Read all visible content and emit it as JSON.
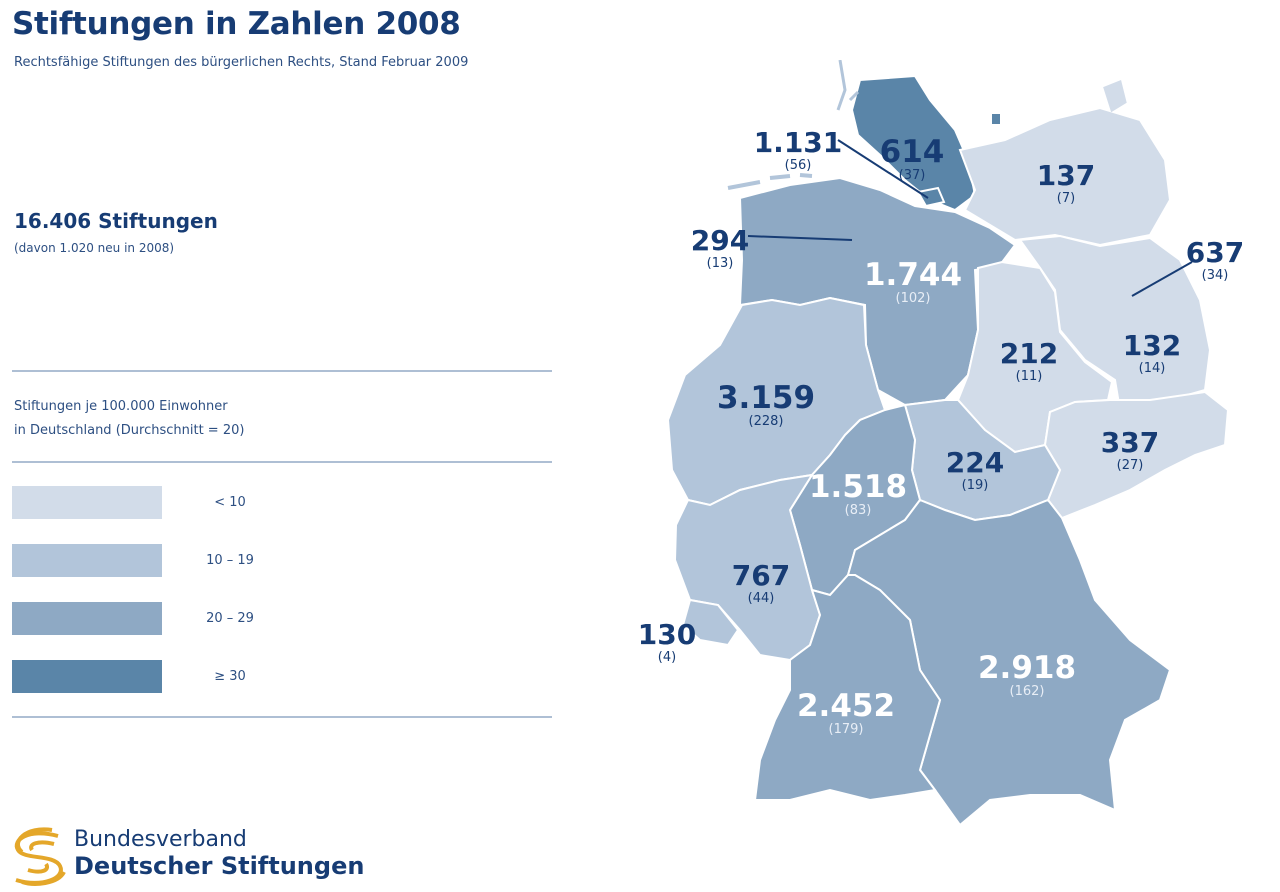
{
  "header": {
    "title": "Stiftungen in Zahlen 2008",
    "subtitle": "Rechtsfähige Stiftungen des bürgerlichen Rechts, Stand Februar 2009"
  },
  "summary": {
    "total": "16.406 Stiftungen",
    "new_note": "(davon 1.020 neu in 2008)"
  },
  "legend": {
    "title_line1": "Stiftungen je 100.000 Einwohner",
    "title_line2": "in Deutschland (Durchschnitt = 20)",
    "items": [
      {
        "label": "< 10",
        "color": "#d2dce9"
      },
      {
        "label": "10 – 19",
        "color": "#b2c5da"
      },
      {
        "label": "20 – 29",
        "color": "#8ea9c4"
      },
      {
        "label": "≥ 30",
        "color": "#5a85a8"
      }
    ]
  },
  "states": [
    {
      "total": "614",
      "per_100k": "(37)",
      "color": "#5a85a8"
    },
    {
      "total": "1.131",
      "per_100k": "(56)",
      "color": "#5a85a8"
    },
    {
      "total": "137",
      "per_100k": "(7)",
      "color": "#d2dce9"
    },
    {
      "total": "294",
      "per_100k": "(13)",
      "color": "#b2c5da"
    },
    {
      "total": "1.744",
      "per_100k": "(102)",
      "color": "#8ea9c4"
    },
    {
      "total": "637",
      "per_100k": "(34)",
      "color": "#5a85a8"
    },
    {
      "total": "132",
      "per_100k": "(14)",
      "color": "#d2dce9"
    },
    {
      "total": "212",
      "per_100k": "(11)",
      "color": "#d2dce9"
    },
    {
      "total": "3.159",
      "per_100k": "(228)",
      "color": "#b2c5da"
    },
    {
      "total": "337",
      "per_100k": "(27)",
      "color": "#d2dce9"
    },
    {
      "total": "224",
      "per_100k": "(19)",
      "color": "#b2c5da"
    },
    {
      "total": "1.518",
      "per_100k": "(83)",
      "color": "#8ea9c4"
    },
    {
      "total": "767",
      "per_100k": "(44)",
      "color": "#b2c5da"
    },
    {
      "total": "130",
      "per_100k": "(4)",
      "color": "#b2c5da"
    },
    {
      "total": "2.918",
      "per_100k": "(162)",
      "color": "#8ea9c4"
    },
    {
      "total": "2.452",
      "per_100k": "(179)",
      "color": "#8ea9c4"
    }
  ],
  "footer": {
    "org_line1": "Bundesverband",
    "org_line2": "Deutscher Stiftungen",
    "logo_color": "#e4a72a"
  }
}
